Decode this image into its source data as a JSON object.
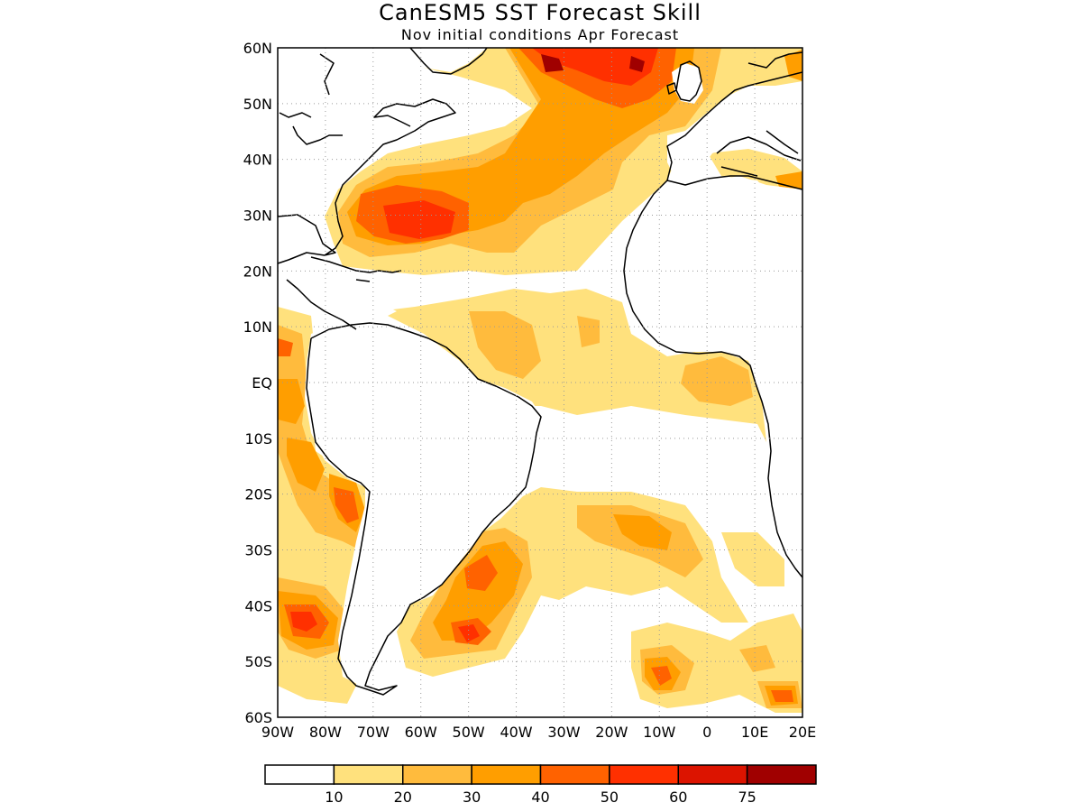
{
  "title": "CanESM5 SST Forecast Skill",
  "subtitle": "Nov initial conditions  Apr Forecast",
  "map": {
    "x_ticks": [
      "90W",
      "80W",
      "70W",
      "60W",
      "50W",
      "40W",
      "30W",
      "20W",
      "10W",
      "0",
      "10E",
      "20E"
    ],
    "y_ticks": [
      "60N",
      "50N",
      "40N",
      "30N",
      "20N",
      "10N",
      "EQ",
      "10S",
      "20S",
      "30S",
      "40S",
      "50S",
      "60S"
    ],
    "lon_range": [
      -90,
      20
    ],
    "lat_range": [
      -60,
      60
    ],
    "grid": "dotted"
  },
  "colorbar": {
    "colors": [
      "#ffffff",
      "#ffe17d",
      "#ffbb3d",
      "#ff9e00",
      "#ff6200",
      "#ff3000",
      "#dc1400",
      "#a00000"
    ],
    "labels": [
      "10",
      "20",
      "30",
      "40",
      "50",
      "60",
      "75"
    ]
  }
}
